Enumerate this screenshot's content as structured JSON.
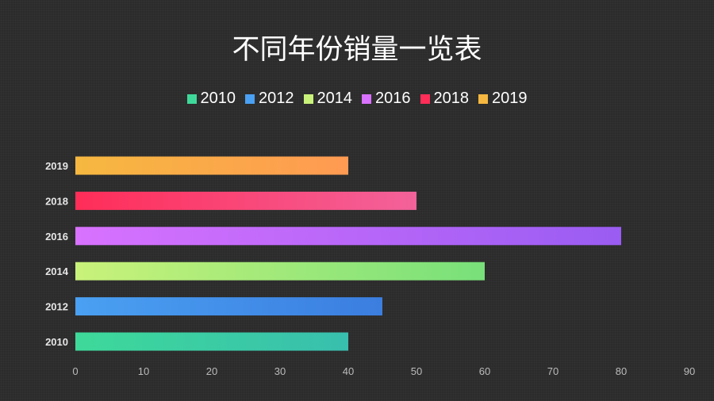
{
  "chart_data": {
    "type": "bar",
    "orientation": "horizontal",
    "title": "不同年份销量一览表",
    "categories": [
      "2019",
      "2018",
      "2016",
      "2014",
      "2012",
      "2010"
    ],
    "series": [
      {
        "name": "2010",
        "category": "2010",
        "value": 40,
        "colors": [
          "#3ed99a",
          "#38bfae"
        ]
      },
      {
        "name": "2012",
        "category": "2012",
        "value": 45,
        "colors": [
          "#4aa0f2",
          "#3b7ee0"
        ]
      },
      {
        "name": "2014",
        "category": "2014",
        "value": 60,
        "colors": [
          "#c9f27a",
          "#78e07a"
        ]
      },
      {
        "name": "2016",
        "category": "2016",
        "value": 80,
        "colors": [
          "#d872ff",
          "#9a5cf2"
        ]
      },
      {
        "name": "2018",
        "category": "2018",
        "value": 50,
        "colors": [
          "#ff2d58",
          "#f3629a"
        ]
      },
      {
        "name": "2019",
        "category": "2019",
        "value": 40,
        "colors": [
          "#f6b840",
          "#ff9a52"
        ]
      }
    ],
    "xlim": [
      0,
      90
    ],
    "xticks": [
      "0",
      "10",
      "20",
      "30",
      "40",
      "50",
      "60",
      "70",
      "80",
      "90"
    ],
    "legend": "top",
    "grid": false
  }
}
